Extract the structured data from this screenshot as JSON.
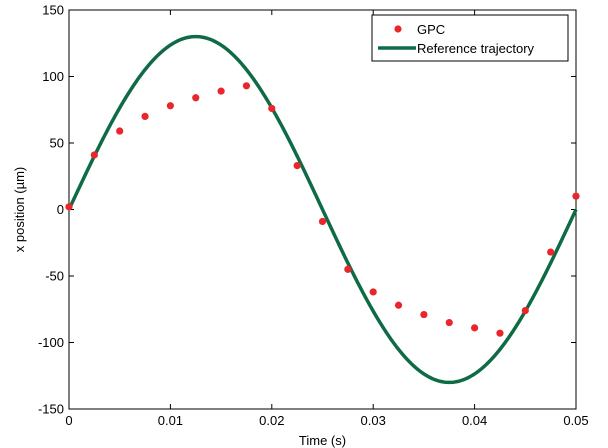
{
  "chart_data": {
    "type": "line",
    "xlabel": "Time (s)",
    "ylabel": "x position (µm)",
    "xlim": [
      0,
      0.05
    ],
    "ylim": [
      -150,
      150
    ],
    "xticks": [
      0,
      0.01,
      0.02,
      0.03,
      0.04,
      0.05
    ],
    "xtick_labels": [
      "0",
      "0.01",
      "0.02",
      "0.03",
      "0.04",
      "0.05"
    ],
    "yticks": [
      -150,
      -100,
      -50,
      0,
      50,
      100,
      150
    ],
    "ytick_labels": [
      "-150",
      "-100",
      "-50",
      "0",
      "50",
      "100",
      "150"
    ],
    "grid": false,
    "legend_position": "top-right",
    "series": [
      {
        "name": "GPC",
        "kind": "scatter",
        "color": "#e8262b",
        "x": [
          0,
          0.0025,
          0.005,
          0.0075,
          0.01,
          0.0125,
          0.015,
          0.0175,
          0.02,
          0.0225,
          0.025,
          0.0275,
          0.03,
          0.0325,
          0.035,
          0.0375,
          0.04,
          0.0425,
          0.045,
          0.0475,
          0.05
        ],
        "y": [
          2,
          41,
          59,
          70,
          78,
          84,
          89,
          93,
          76,
          33,
          -9,
          -45,
          -62,
          -72,
          -79,
          -85,
          -89,
          -93,
          -76,
          -32,
          10
        ]
      },
      {
        "name": "Reference trajectory",
        "kind": "line",
        "color": "#0e6b45",
        "amplitude": 130,
        "frequency_hz": 20
      }
    ]
  }
}
